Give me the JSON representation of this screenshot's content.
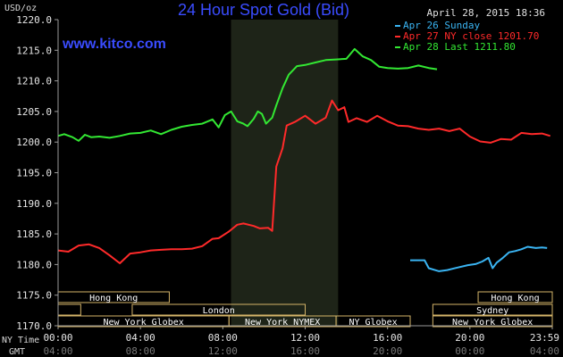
{
  "chart_data": {
    "type": "line",
    "title": "24 Hour Spot Gold (Bid)",
    "source": "www.kitco.com",
    "timestamp": "April 28, 2015 18:36",
    "ylabel": "USD/oz",
    "ylim": [
      1170.0,
      1220.0
    ],
    "yticks": [
      "1220.0",
      "1215.0",
      "1210.0",
      "1205.0",
      "1200.0",
      "1195.0",
      "1190.0",
      "1185.0",
      "1180.0",
      "1175.0",
      "1170.0"
    ],
    "xlim": [
      0,
      24
    ],
    "xlabel_ny": "NY Time",
    "xlabel_gmt": "GMT",
    "xticks_ny": [
      "00:00",
      "04:00",
      "08:00",
      "12:00",
      "16:00",
      "20:00",
      "23:59"
    ],
    "xticks_gmt": [
      "04:00",
      "08:00",
      "12:00",
      "16:00",
      "20:00",
      "00:00",
      "04:00"
    ],
    "grid": false,
    "legend_placement": "top-right",
    "shaded_region": [
      8.4,
      13.6
    ],
    "series": [
      {
        "name": "Apr 26 Sunday",
        "color": "#3ab4f2",
        "x": [
          17.1,
          17.8,
          18.0,
          18.5,
          18.9,
          19.4,
          19.9,
          20.3,
          20.6,
          20.9,
          21.1,
          21.3,
          21.6,
          21.9,
          22.2,
          22.5,
          22.8,
          23.2,
          23.5,
          23.75
        ],
        "y": [
          1180.7,
          1180.7,
          1179.4,
          1178.9,
          1179.1,
          1179.5,
          1179.9,
          1180.1,
          1180.5,
          1181.1,
          1179.4,
          1180.3,
          1181.1,
          1182.0,
          1182.2,
          1182.5,
          1182.9,
          1182.7,
          1182.8,
          1182.7
        ]
      },
      {
        "name": "Apr 27 NY close 1201.70",
        "color": "#ff2a2a",
        "x": [
          0,
          0.5,
          1.0,
          1.5,
          2.0,
          2.5,
          3.0,
          3.5,
          4.0,
          4.5,
          5.0,
          5.5,
          6.0,
          6.5,
          7.0,
          7.5,
          7.8,
          8.3,
          8.7,
          9.0,
          9.5,
          9.8,
          10.2,
          10.4,
          10.6,
          10.9,
          11.1,
          11.5,
          12.0,
          12.5,
          13.0,
          13.3,
          13.6,
          13.9,
          14.1,
          14.5,
          15.0,
          15.5,
          16.0,
          16.5,
          17.0,
          17.5,
          18.0,
          18.5,
          19.0,
          19.5,
          20.0,
          20.5,
          21.0,
          21.5,
          22.0,
          22.5,
          23.0,
          23.5,
          23.9
        ],
        "y": [
          1182.3,
          1182.1,
          1183.1,
          1183.3,
          1182.7,
          1181.5,
          1180.2,
          1181.8,
          1182.0,
          1182.3,
          1182.4,
          1182.5,
          1182.5,
          1182.6,
          1183.0,
          1184.2,
          1184.3,
          1185.4,
          1186.5,
          1186.7,
          1186.3,
          1185.9,
          1186.0,
          1185.5,
          1196.0,
          1199.0,
          1202.7,
          1203.3,
          1204.3,
          1203.0,
          1204.0,
          1206.8,
          1205.2,
          1205.7,
          1203.3,
          1203.9,
          1203.3,
          1204.3,
          1203.4,
          1202.7,
          1202.6,
          1202.2,
          1202.0,
          1202.2,
          1201.8,
          1202.2,
          1200.9,
          1200.1,
          1199.9,
          1200.5,
          1200.4,
          1201.5,
          1201.3,
          1201.4,
          1201.0
        ]
      },
      {
        "name": "Apr 28 Last 1211.80",
        "color": "#33e833",
        "x": [
          0,
          0.3,
          0.7,
          1.0,
          1.3,
          1.6,
          2.0,
          2.5,
          3.0,
          3.5,
          4.0,
          4.5,
          5.0,
          5.5,
          6.0,
          6.5,
          7.0,
          7.5,
          7.8,
          8.1,
          8.4,
          8.7,
          9.0,
          9.2,
          9.5,
          9.7,
          9.9,
          10.1,
          10.4,
          10.6,
          10.9,
          11.2,
          11.6,
          12.0,
          12.5,
          13.0,
          13.5,
          14.0,
          14.4,
          14.8,
          15.2,
          15.6,
          16.0,
          16.5,
          17.0,
          17.5,
          18.0,
          18.4
        ],
        "y": [
          1201.0,
          1201.3,
          1200.8,
          1200.2,
          1201.2,
          1200.8,
          1200.9,
          1200.7,
          1201.0,
          1201.4,
          1201.5,
          1201.9,
          1201.3,
          1202.0,
          1202.5,
          1202.8,
          1203.0,
          1203.7,
          1202.4,
          1204.4,
          1205.0,
          1203.4,
          1203.0,
          1202.6,
          1203.8,
          1205.0,
          1204.6,
          1203.0,
          1204.0,
          1206.0,
          1208.8,
          1211.0,
          1212.4,
          1212.6,
          1213.0,
          1213.4,
          1213.5,
          1213.6,
          1215.2,
          1214.0,
          1213.4,
          1212.3,
          1212.1,
          1212.0,
          1212.1,
          1212.5,
          1212.1,
          1211.9
        ]
      }
    ],
    "sessions": [
      {
        "label": "Hong Kong",
        "row": 1,
        "start": 0,
        "end": 5.4
      },
      {
        "label": "Hong Kong",
        "row": 1,
        "start": 20.4,
        "end": 24
      },
      {
        "label": "",
        "row": 2,
        "start": 0,
        "end": 1.1
      },
      {
        "label": "London",
        "row": 2,
        "start": 3.6,
        "end": 12.0
      },
      {
        "label": "Sydney",
        "row": 2,
        "start": 18.2,
        "end": 24
      },
      {
        "label": "New York Globex",
        "row": 3,
        "start": 0,
        "end": 8.3
      },
      {
        "label": "New York NYMEX",
        "row": 3,
        "start": 8.3,
        "end": 13.5
      },
      {
        "label": "NY Globex",
        "row": 3,
        "start": 13.5,
        "end": 17.1
      },
      {
        "label": "New York Globex",
        "row": 3,
        "start": 18.2,
        "end": 24
      }
    ]
  }
}
